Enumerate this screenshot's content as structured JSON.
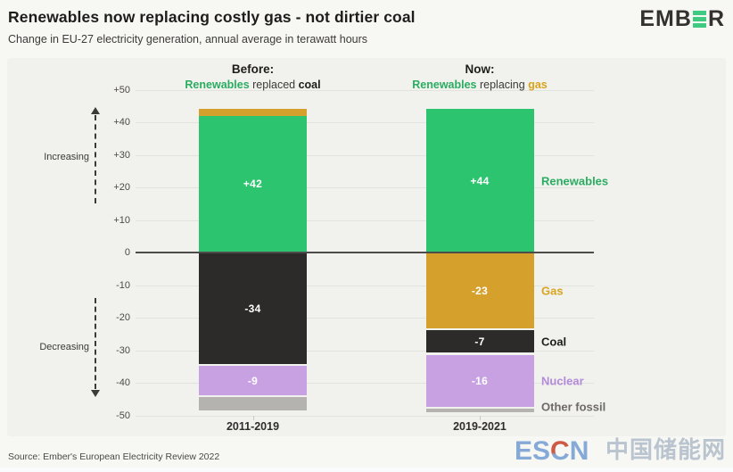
{
  "header": {
    "title": "Renewables now replacing costly gas - not dirtier coal",
    "subtitle": "Change in EU-27 electricity generation, annual average in terawatt hours",
    "logo": {
      "left": "EMB",
      "right": "R"
    }
  },
  "chart_data": {
    "type": "bar",
    "stacked": true,
    "unit": "terawatt hours",
    "ylim": [
      -50,
      50
    ],
    "ytick_step": 10,
    "grid": true,
    "zero_line": true,
    "axis_annotations": {
      "increasing": "Increasing",
      "decreasing": "Decreasing"
    },
    "categories": [
      "2011-2019",
      "2019-2021"
    ],
    "groups": [
      {
        "heading": "Before:",
        "subheading_parts": [
          {
            "text": "Renewables",
            "color": "#2aad61",
            "bold": true
          },
          {
            "text": " replaced ",
            "color": "#3b3a38",
            "bold": false
          },
          {
            "text": "coal",
            "color": "#1e1d1b",
            "bold": true
          }
        ],
        "category": "2011-2019",
        "segments": [
          {
            "name": "Gas",
            "value": 2,
            "label": "",
            "color": "#d5a02b"
          },
          {
            "name": "Renewables",
            "value": 42,
            "label": "+42",
            "color": "#2cc46f"
          },
          {
            "name": "Coal",
            "value": -34,
            "label": "-34",
            "color": "#2c2b2a"
          },
          {
            "name": "Nuclear",
            "value": -9,
            "label": "-9",
            "color": "#c7a1e1"
          },
          {
            "name": "Other fossil",
            "value": -4,
            "label": "",
            "color": "#b5b3b0"
          }
        ]
      },
      {
        "heading": "Now:",
        "subheading_parts": [
          {
            "text": "Renewables",
            "color": "#2aad61",
            "bold": true
          },
          {
            "text": " replacing ",
            "color": "#3b3a38",
            "bold": false
          },
          {
            "text": "gas",
            "color": "#d9a41d",
            "bold": true
          }
        ],
        "category": "2019-2021",
        "segments": [
          {
            "name": "Renewables",
            "value": 44,
            "label": "+44",
            "color": "#2cc46f"
          },
          {
            "name": "Gas",
            "value": -23,
            "label": "-23",
            "color": "#d5a02b"
          },
          {
            "name": "Coal",
            "value": -7,
            "label": "-7",
            "color": "#2c2b2a"
          },
          {
            "name": "Nuclear",
            "value": -16,
            "label": "-16",
            "color": "#c7a1e1"
          },
          {
            "name": "Other fossil",
            "value": -1,
            "label": "",
            "color": "#b5b3b0"
          }
        ]
      }
    ],
    "legend": [
      {
        "text": "Renewables",
        "color": "#2aad61",
        "segment": "Renewables"
      },
      {
        "text": "Gas",
        "color": "#d9a41d",
        "segment": "Gas"
      },
      {
        "text": "Coal",
        "color": "#1e1d1b",
        "segment": "Coal"
      },
      {
        "text": "Nuclear",
        "color": "#b48bd9",
        "segment": "Nuclear"
      },
      {
        "text": "Other fossil",
        "color": "#6e6a65",
        "segment": "Other fossil"
      }
    ],
    "legend_position": "right"
  },
  "footer": {
    "source": "Source: Ember's European Electricity Review 2022",
    "watermark": {
      "es": "ES",
      "c": "C",
      "n": "N",
      "cjk": "中国储能网"
    }
  }
}
